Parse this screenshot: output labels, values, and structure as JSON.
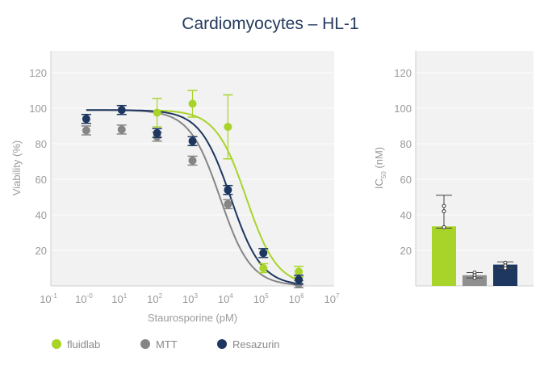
{
  "chart_data": [
    {
      "type": "scatter",
      "title": "Cardiomyocytes – HL-1",
      "xlabel": "Staurosporine (pM)",
      "ylabel": "Viability (%)",
      "xscale": "log10",
      "xlim_log10": [
        -1,
        7
      ],
      "ylim": [
        0,
        130
      ],
      "yticks": [
        20,
        40,
        60,
        80,
        100,
        120
      ],
      "xtick_labels": [
        {
          "base": "10",
          "exp": "-1",
          "log": -1
        },
        {
          "base": "10",
          "exp": "-0",
          "log": 0
        },
        {
          "base": "10",
          "exp": "1",
          "log": 1
        },
        {
          "base": "10",
          "exp": "2",
          "log": 2
        },
        {
          "base": "10",
          "exp": "3",
          "log": 3
        },
        {
          "base": "10",
          "exp": "4",
          "log": 4
        },
        {
          "base": "10",
          "exp": "5",
          "log": 5
        },
        {
          "base": "10",
          "exp": "6",
          "log": 6
        },
        {
          "base": "10",
          "exp": "7",
          "log": 7
        }
      ],
      "grid": true,
      "series": [
        {
          "name": "fluidlab",
          "color": "#a8d42a",
          "fit": {
            "top": 99,
            "bottom": 0,
            "log_ic50": 4.52,
            "hill": 1.0,
            "from": 2,
            "to": 6
          },
          "points": [
            {
              "log_x": 2,
              "y": 97.5,
              "err": 8
            },
            {
              "log_x": 3,
              "y": 102.5,
              "err": 7.5
            },
            {
              "log_x": 4,
              "y": 89.5,
              "err": 18
            },
            {
              "log_x": 5,
              "y": 10,
              "err": 2.5
            },
            {
              "log_x": 6,
              "y": 8,
              "err": 3
            }
          ]
        },
        {
          "name": "MTT",
          "color": "#858585",
          "fit": {
            "top": 99,
            "bottom": 0,
            "log_ic50": 3.78,
            "hill": 1.0,
            "from": 0,
            "to": 6
          },
          "points": [
            {
              "log_x": 0,
              "y": 87.5,
              "err": 2.5
            },
            {
              "log_x": 1,
              "y": 88,
              "err": 2.5
            },
            {
              "log_x": 2,
              "y": 84,
              "err": 2.5
            },
            {
              "log_x": 3,
              "y": 70.5,
              "err": 2.5
            },
            {
              "log_x": 4,
              "y": 46,
              "err": 2.5
            },
            {
              "log_x": 6,
              "y": 1,
              "err": 2
            }
          ]
        },
        {
          "name": "Resazurin",
          "color": "#1d3760",
          "fit": {
            "top": 99,
            "bottom": 0,
            "log_ic50": 4.08,
            "hill": 1.0,
            "from": 0,
            "to": 6
          },
          "points": [
            {
              "log_x": 0,
              "y": 94,
              "err": 2.5
            },
            {
              "log_x": 1,
              "y": 99,
              "err": 2.5
            },
            {
              "log_x": 2,
              "y": 86,
              "err": 2.5
            },
            {
              "log_x": 3,
              "y": 81.5,
              "err": 2.5
            },
            {
              "log_x": 4,
              "y": 54,
              "err": 2.5
            },
            {
              "log_x": 5,
              "y": 18.5,
              "err": 2.5
            },
            {
              "log_x": 6,
              "y": 3.5,
              "err": 2.5
            }
          ]
        }
      ],
      "legend": "bottom-left"
    },
    {
      "type": "bar",
      "ylabel_main": "IC",
      "ylabel_sub": "50",
      "ylabel_unit": " (nM)",
      "ylim": [
        0,
        130
      ],
      "yticks": [
        20,
        40,
        60,
        80,
        100,
        120
      ],
      "categories": [
        "fluidlab",
        "MTT",
        "Resazurin"
      ],
      "values": [
        33.5,
        6,
        12
      ],
      "err_low": [
        32.5,
        4.5,
        10
      ],
      "err_high": [
        51,
        7.5,
        13.5
      ],
      "replicates": [
        [
          45,
          42,
          33
        ],
        [
          7.5,
          6,
          4.5
        ],
        [
          13,
          11.5,
          10
        ]
      ],
      "colors": [
        "#a8d42a",
        "#8f8f8f",
        "#1d3760"
      ]
    }
  ],
  "legend": [
    {
      "label": "fluidlab",
      "color": "#a8d42a"
    },
    {
      "label": "MTT",
      "color": "#858585"
    },
    {
      "label": "Resazurin",
      "color": "#1d3760"
    }
  ]
}
